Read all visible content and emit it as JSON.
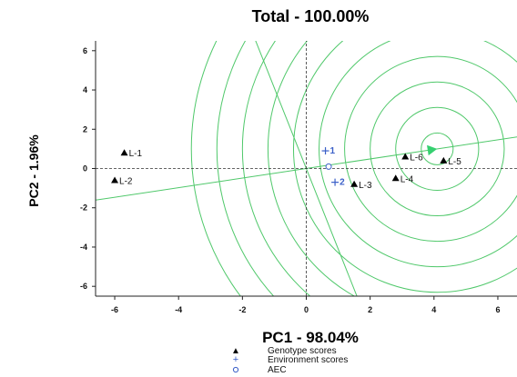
{
  "chart_data": {
    "type": "scatter",
    "title": "Total - 100.00%",
    "xlabel": "PC1 - 98.04%",
    "ylabel": "PC2 - 1.96%",
    "xlim": [
      -6.6,
      6.6
    ],
    "ylim": [
      -6.5,
      6.5
    ],
    "xticks": [
      -6,
      -4,
      -2,
      0,
      2,
      4,
      6
    ],
    "yticks": [
      -6,
      -4,
      -2,
      0,
      2,
      4,
      6
    ],
    "genotypes": [
      {
        "label": "L-1",
        "x": -5.7,
        "y": 0.8
      },
      {
        "label": "L-2",
        "x": -6.0,
        "y": -0.6
      },
      {
        "label": "L-3",
        "x": 1.5,
        "y": -0.8
      },
      {
        "label": "L-4",
        "x": 2.8,
        "y": -0.5
      },
      {
        "label": "L-5",
        "x": 4.3,
        "y": 0.4
      },
      {
        "label": "L-6",
        "x": 3.1,
        "y": 0.6
      }
    ],
    "environments": [
      {
        "label": "1",
        "x": 0.6,
        "y": 0.9
      },
      {
        "label": "2",
        "x": 0.9,
        "y": -0.7
      }
    ],
    "aec": {
      "x": 0.7,
      "y": 0.1
    },
    "ideal": {
      "x": 4.1,
      "y": 1.0
    },
    "ring_radii": [
      0.5,
      1.3,
      2.1,
      2.9,
      3.7,
      4.5,
      5.3,
      6.1,
      6.9,
      7.7
    ],
    "legend": [
      "Genotype scores",
      "Environment scores",
      "AEC"
    ],
    "colors": {
      "genotype": "#000000",
      "environment": "#3a5fc8",
      "rings": "#4fc86a",
      "ideal_arrow": "#35d070"
    }
  }
}
